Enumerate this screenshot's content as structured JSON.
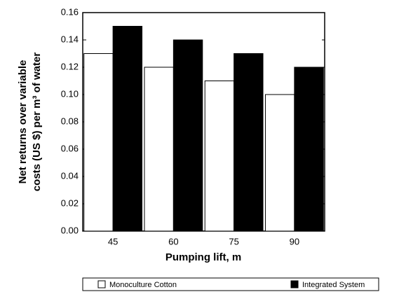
{
  "chart_data": {
    "type": "bar",
    "ylabel": [
      "Net returns over variable",
      "costs (US $) per m³ of water"
    ],
    "xlabel": "Pumping lift, m",
    "categories": [
      "45",
      "60",
      "75",
      "90"
    ],
    "series": [
      {
        "name": "Monoculture Cotton",
        "color": "#ffffff",
        "values": [
          0.13,
          0.12,
          0.11,
          0.1
        ]
      },
      {
        "name": "Integrated System",
        "color": "#000000",
        "values": [
          0.15,
          0.14,
          0.13,
          0.12
        ]
      }
    ],
    "ylim": [
      0,
      0.16
    ],
    "yticks": [
      {
        "value": 0,
        "label": "0.00"
      },
      {
        "value": 0.02,
        "label": "0.02"
      },
      {
        "value": 0.04,
        "label": "0.04"
      },
      {
        "value": 0.06,
        "label": "0.06"
      },
      {
        "value": 0.08,
        "label": "0.08"
      },
      {
        "value": 0.1,
        "label": "0.10"
      },
      {
        "value": 0.12,
        "label": "0.12"
      },
      {
        "value": 0.14,
        "label": "0.14"
      },
      {
        "value": 0.16,
        "label": "0.16"
      }
    ]
  }
}
